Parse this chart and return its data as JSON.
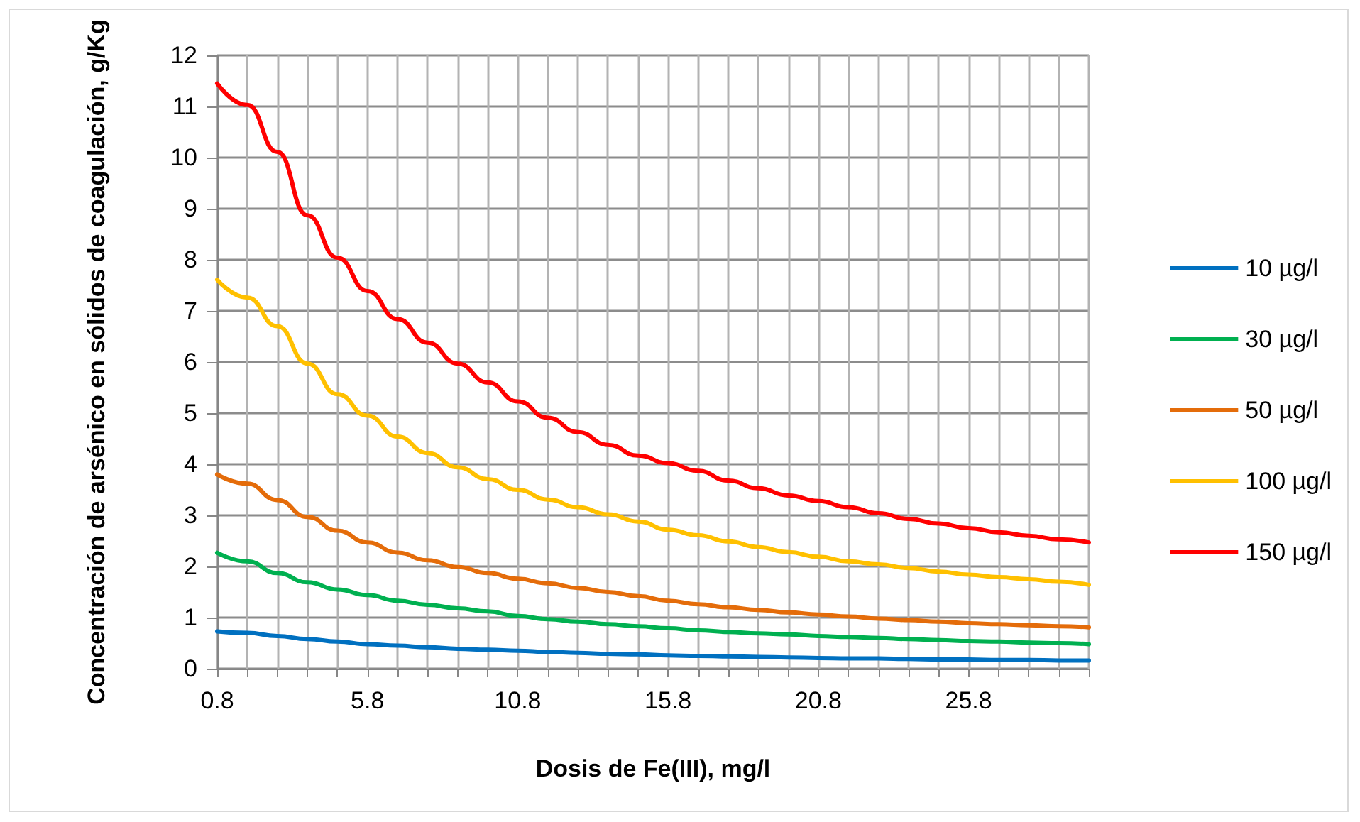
{
  "chart_data": {
    "type": "line",
    "xlabel": "Dosis de Fe(III), mg/l",
    "ylabel": "Concentración de arsénico en sólidos de coagulación, g/Kg",
    "x": [
      0.8,
      1.8,
      2.8,
      3.8,
      4.8,
      5.8,
      6.8,
      7.8,
      8.8,
      9.8,
      10.8,
      11.8,
      12.8,
      13.8,
      14.8,
      15.8,
      16.8,
      17.8,
      18.8,
      19.8,
      20.8,
      21.8,
      22.8,
      23.8,
      24.8,
      25.8,
      26.8,
      27.8,
      28.8,
      29.8
    ],
    "xlim": [
      0.8,
      29.8
    ],
    "xticks": [
      0.8,
      {
        "value": 1.8,
        "label": null
      },
      {
        "value": 2.8,
        "label": null
      },
      {
        "value": 3.8,
        "label": null
      },
      {
        "value": 4.8,
        "label": null
      },
      5.8,
      {
        "value": 6.8,
        "label": null
      },
      {
        "value": 7.8,
        "label": null
      },
      {
        "value": 8.8,
        "label": null
      },
      {
        "value": 9.8,
        "label": null
      },
      10.8,
      {
        "value": 11.8,
        "label": null
      },
      {
        "value": 12.8,
        "label": null
      },
      {
        "value": 13.8,
        "label": null
      },
      {
        "value": 14.8,
        "label": null
      },
      15.8,
      {
        "value": 16.8,
        "label": null
      },
      {
        "value": 17.8,
        "label": null
      },
      {
        "value": 18.8,
        "label": null
      },
      {
        "value": 19.8,
        "label": null
      },
      20.8,
      {
        "value": 21.8,
        "label": null
      },
      {
        "value": 22.8,
        "label": null
      },
      {
        "value": 23.8,
        "label": null
      },
      {
        "value": 24.8,
        "label": null
      },
      25.8,
      {
        "value": 26.8,
        "label": null
      },
      {
        "value": 27.8,
        "label": null
      },
      {
        "value": 28.8,
        "label": null
      },
      {
        "value": 29.8,
        "label": null
      }
    ],
    "ylim": [
      0,
      12
    ],
    "yticks": [
      0,
      1,
      2,
      3,
      4,
      5,
      6,
      7,
      8,
      9,
      10,
      11,
      12
    ],
    "series": [
      {
        "name": "10 µg/l",
        "color": "#0070c0",
        "values": [
          0.73,
          0.7,
          0.64,
          0.58,
          0.53,
          0.48,
          0.45,
          0.42,
          0.39,
          0.37,
          0.35,
          0.33,
          0.31,
          0.29,
          0.28,
          0.26,
          0.25,
          0.24,
          0.23,
          0.22,
          0.21,
          0.2,
          0.2,
          0.19,
          0.18,
          0.18,
          0.17,
          0.17,
          0.16,
          0.16
        ]
      },
      {
        "name": "30 µg/l",
        "color": "#00b050",
        "values": [
          2.27,
          2.1,
          1.87,
          1.69,
          1.55,
          1.44,
          1.33,
          1.25,
          1.18,
          1.12,
          1.03,
          0.97,
          0.92,
          0.87,
          0.83,
          0.79,
          0.75,
          0.72,
          0.69,
          0.67,
          0.64,
          0.62,
          0.6,
          0.58,
          0.56,
          0.54,
          0.53,
          0.51,
          0.5,
          0.48
        ]
      },
      {
        "name": "50 µg/l",
        "color": "#e46c0a",
        "values": [
          3.8,
          3.62,
          3.3,
          2.97,
          2.7,
          2.47,
          2.27,
          2.12,
          1.99,
          1.87,
          1.76,
          1.67,
          1.58,
          1.5,
          1.42,
          1.33,
          1.26,
          1.2,
          1.15,
          1.1,
          1.06,
          1.02,
          0.98,
          0.95,
          0.92,
          0.89,
          0.87,
          0.85,
          0.83,
          0.81
        ]
      },
      {
        "name": "100 µg/l",
        "color": "#ffc000",
        "values": [
          7.61,
          7.26,
          6.7,
          5.97,
          5.37,
          4.95,
          4.54,
          4.22,
          3.94,
          3.71,
          3.5,
          3.31,
          3.16,
          3.02,
          2.88,
          2.72,
          2.61,
          2.49,
          2.38,
          2.28,
          2.19,
          2.1,
          2.04,
          1.97,
          1.9,
          1.84,
          1.79,
          1.75,
          1.7,
          1.64
        ]
      },
      {
        "name": "150 µg/l",
        "color": "#ff0000",
        "values": [
          11.45,
          11.03,
          10.11,
          8.87,
          8.04,
          7.39,
          6.84,
          6.38,
          5.97,
          5.6,
          5.23,
          4.91,
          4.63,
          4.38,
          4.17,
          4.02,
          3.87,
          3.68,
          3.53,
          3.39,
          3.28,
          3.16,
          3.04,
          2.93,
          2.84,
          2.75,
          2.67,
          2.6,
          2.53,
          2.47
        ]
      }
    ],
    "grid": true,
    "legend": "right",
    "marker": "none",
    "line_style": "solid"
  }
}
